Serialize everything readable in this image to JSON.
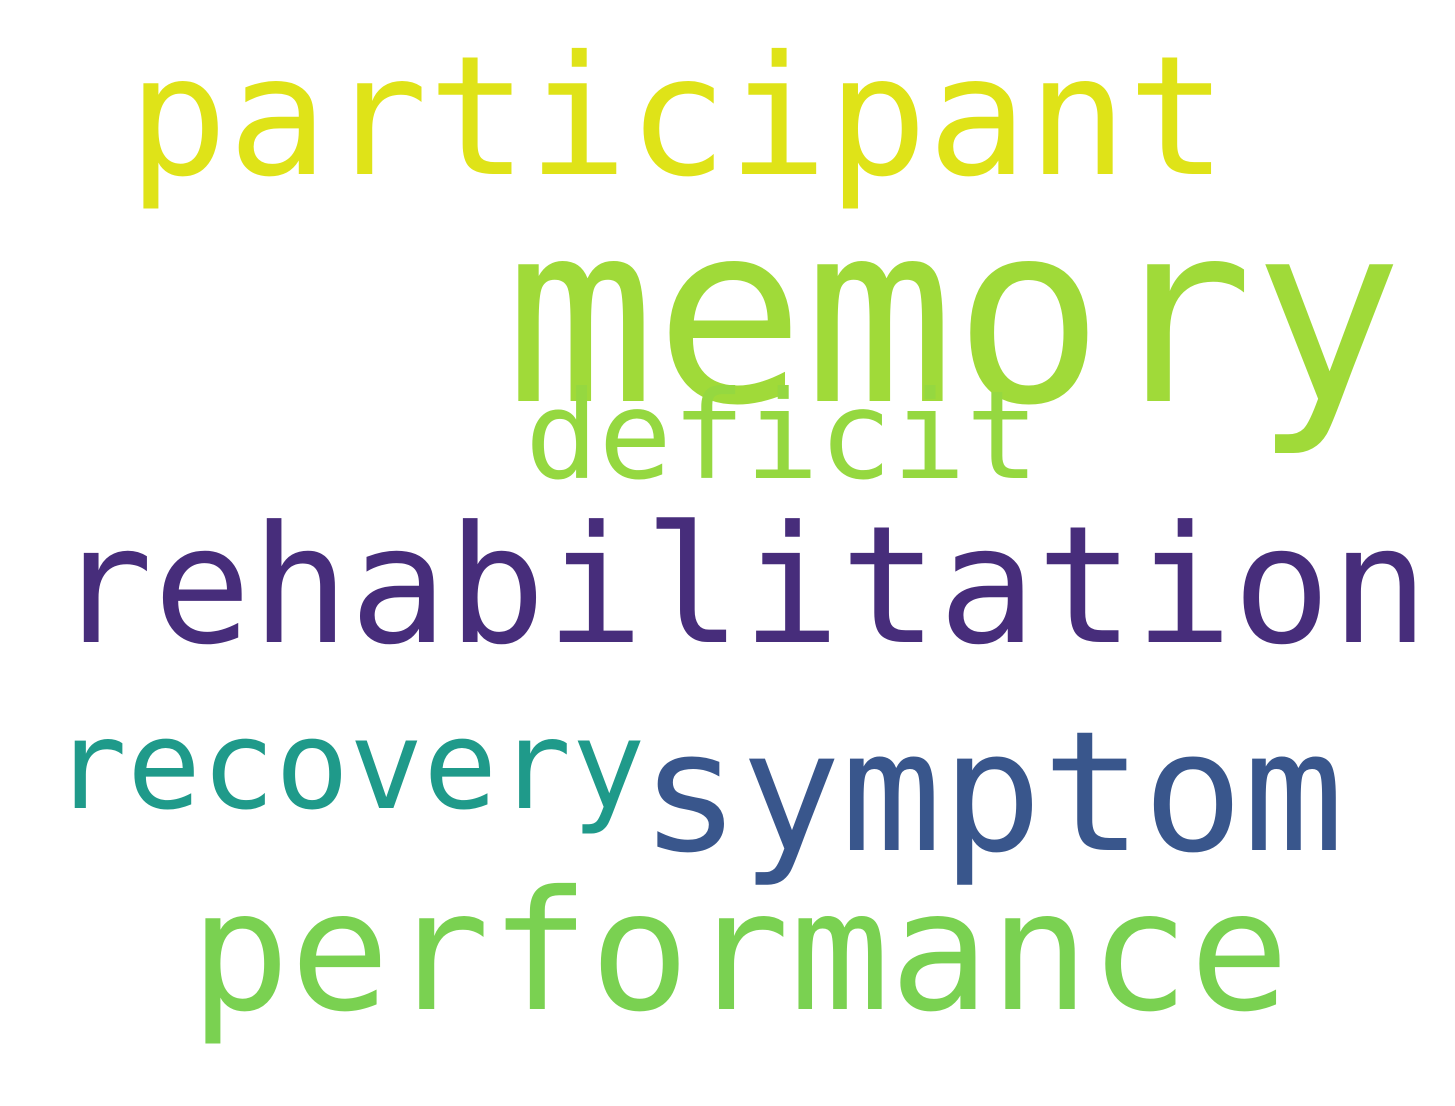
{
  "words": [
    {
      "text": "participant",
      "color": "#dfe318"
    },
    {
      "text": "memory",
      "color": "#a0da39"
    },
    {
      "text": "deficit",
      "color": "#95d840"
    },
    {
      "text": "rehabilitation",
      "color": "#472d7b"
    },
    {
      "text": "recovery",
      "color": "#1f9a8a"
    },
    {
      "text": "symptom",
      "color": "#39568c"
    },
    {
      "text": "performance",
      "color": "#7ad151"
    }
  ]
}
